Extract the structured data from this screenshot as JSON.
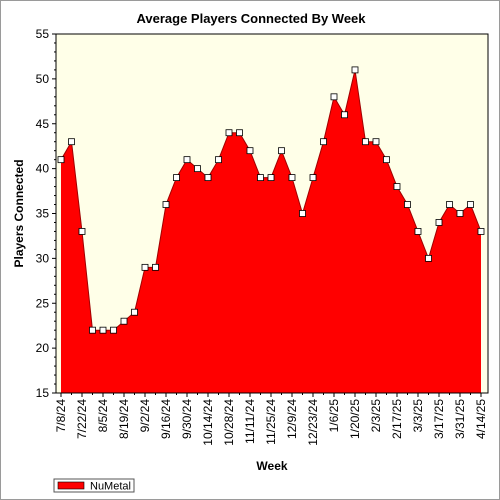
{
  "chart_data": {
    "type": "area",
    "title": "Average Players Connected By Week",
    "xlabel": "Week",
    "ylabel": "Players Connected",
    "ylim": [
      15,
      55
    ],
    "yticks": [
      15,
      20,
      25,
      30,
      35,
      40,
      45,
      50,
      55
    ],
    "grid": false,
    "legend_position": "bottom-left",
    "x_tick_labels": [
      "7/8/24",
      "7/22/24",
      "8/5/24",
      "8/19/24",
      "9/2/24",
      "9/16/24",
      "9/30/24",
      "10/14/24",
      "10/28/24",
      "11/11/24",
      "11/25/24",
      "12/9/24",
      "12/23/24",
      "1/6/25",
      "1/20/25",
      "2/3/25",
      "2/17/25",
      "3/3/25",
      "3/17/25",
      "3/31/25",
      "4/14/25"
    ],
    "x": [
      "7/8/24",
      "7/15/24",
      "7/22/24",
      "7/29/24",
      "8/5/24",
      "8/12/24",
      "8/19/24",
      "8/26/24",
      "9/2/24",
      "9/9/24",
      "9/16/24",
      "9/23/24",
      "9/30/24",
      "10/7/24",
      "10/14/24",
      "10/21/24",
      "10/28/24",
      "11/4/24",
      "11/11/24",
      "11/18/24",
      "11/25/24",
      "12/2/24",
      "12/9/24",
      "12/16/24",
      "12/23/24",
      "12/30/24",
      "1/6/25",
      "1/13/25",
      "1/20/25",
      "1/27/25",
      "2/3/25",
      "2/10/25",
      "2/17/25",
      "2/24/25",
      "3/3/25",
      "3/10/25",
      "3/17/25",
      "3/24/25",
      "3/31/25",
      "4/7/25",
      "4/14/25"
    ],
    "series": [
      {
        "name": "NuMetal",
        "color": "#ff0000",
        "values": [
          41,
          43,
          33,
          22,
          22,
          22,
          23,
          24,
          29,
          29,
          36,
          39,
          41,
          40,
          39,
          41,
          44,
          44,
          42,
          39,
          39,
          42,
          39,
          35,
          39,
          43,
          48,
          46,
          51,
          43,
          43,
          41,
          38,
          36,
          33,
          30,
          34,
          36,
          35,
          36,
          33
        ]
      }
    ]
  },
  "colors": {
    "plot_background": "#ffffe8",
    "area_fill": "#ff0000",
    "line": "#a00000",
    "marker_fill": "#ffffff"
  }
}
